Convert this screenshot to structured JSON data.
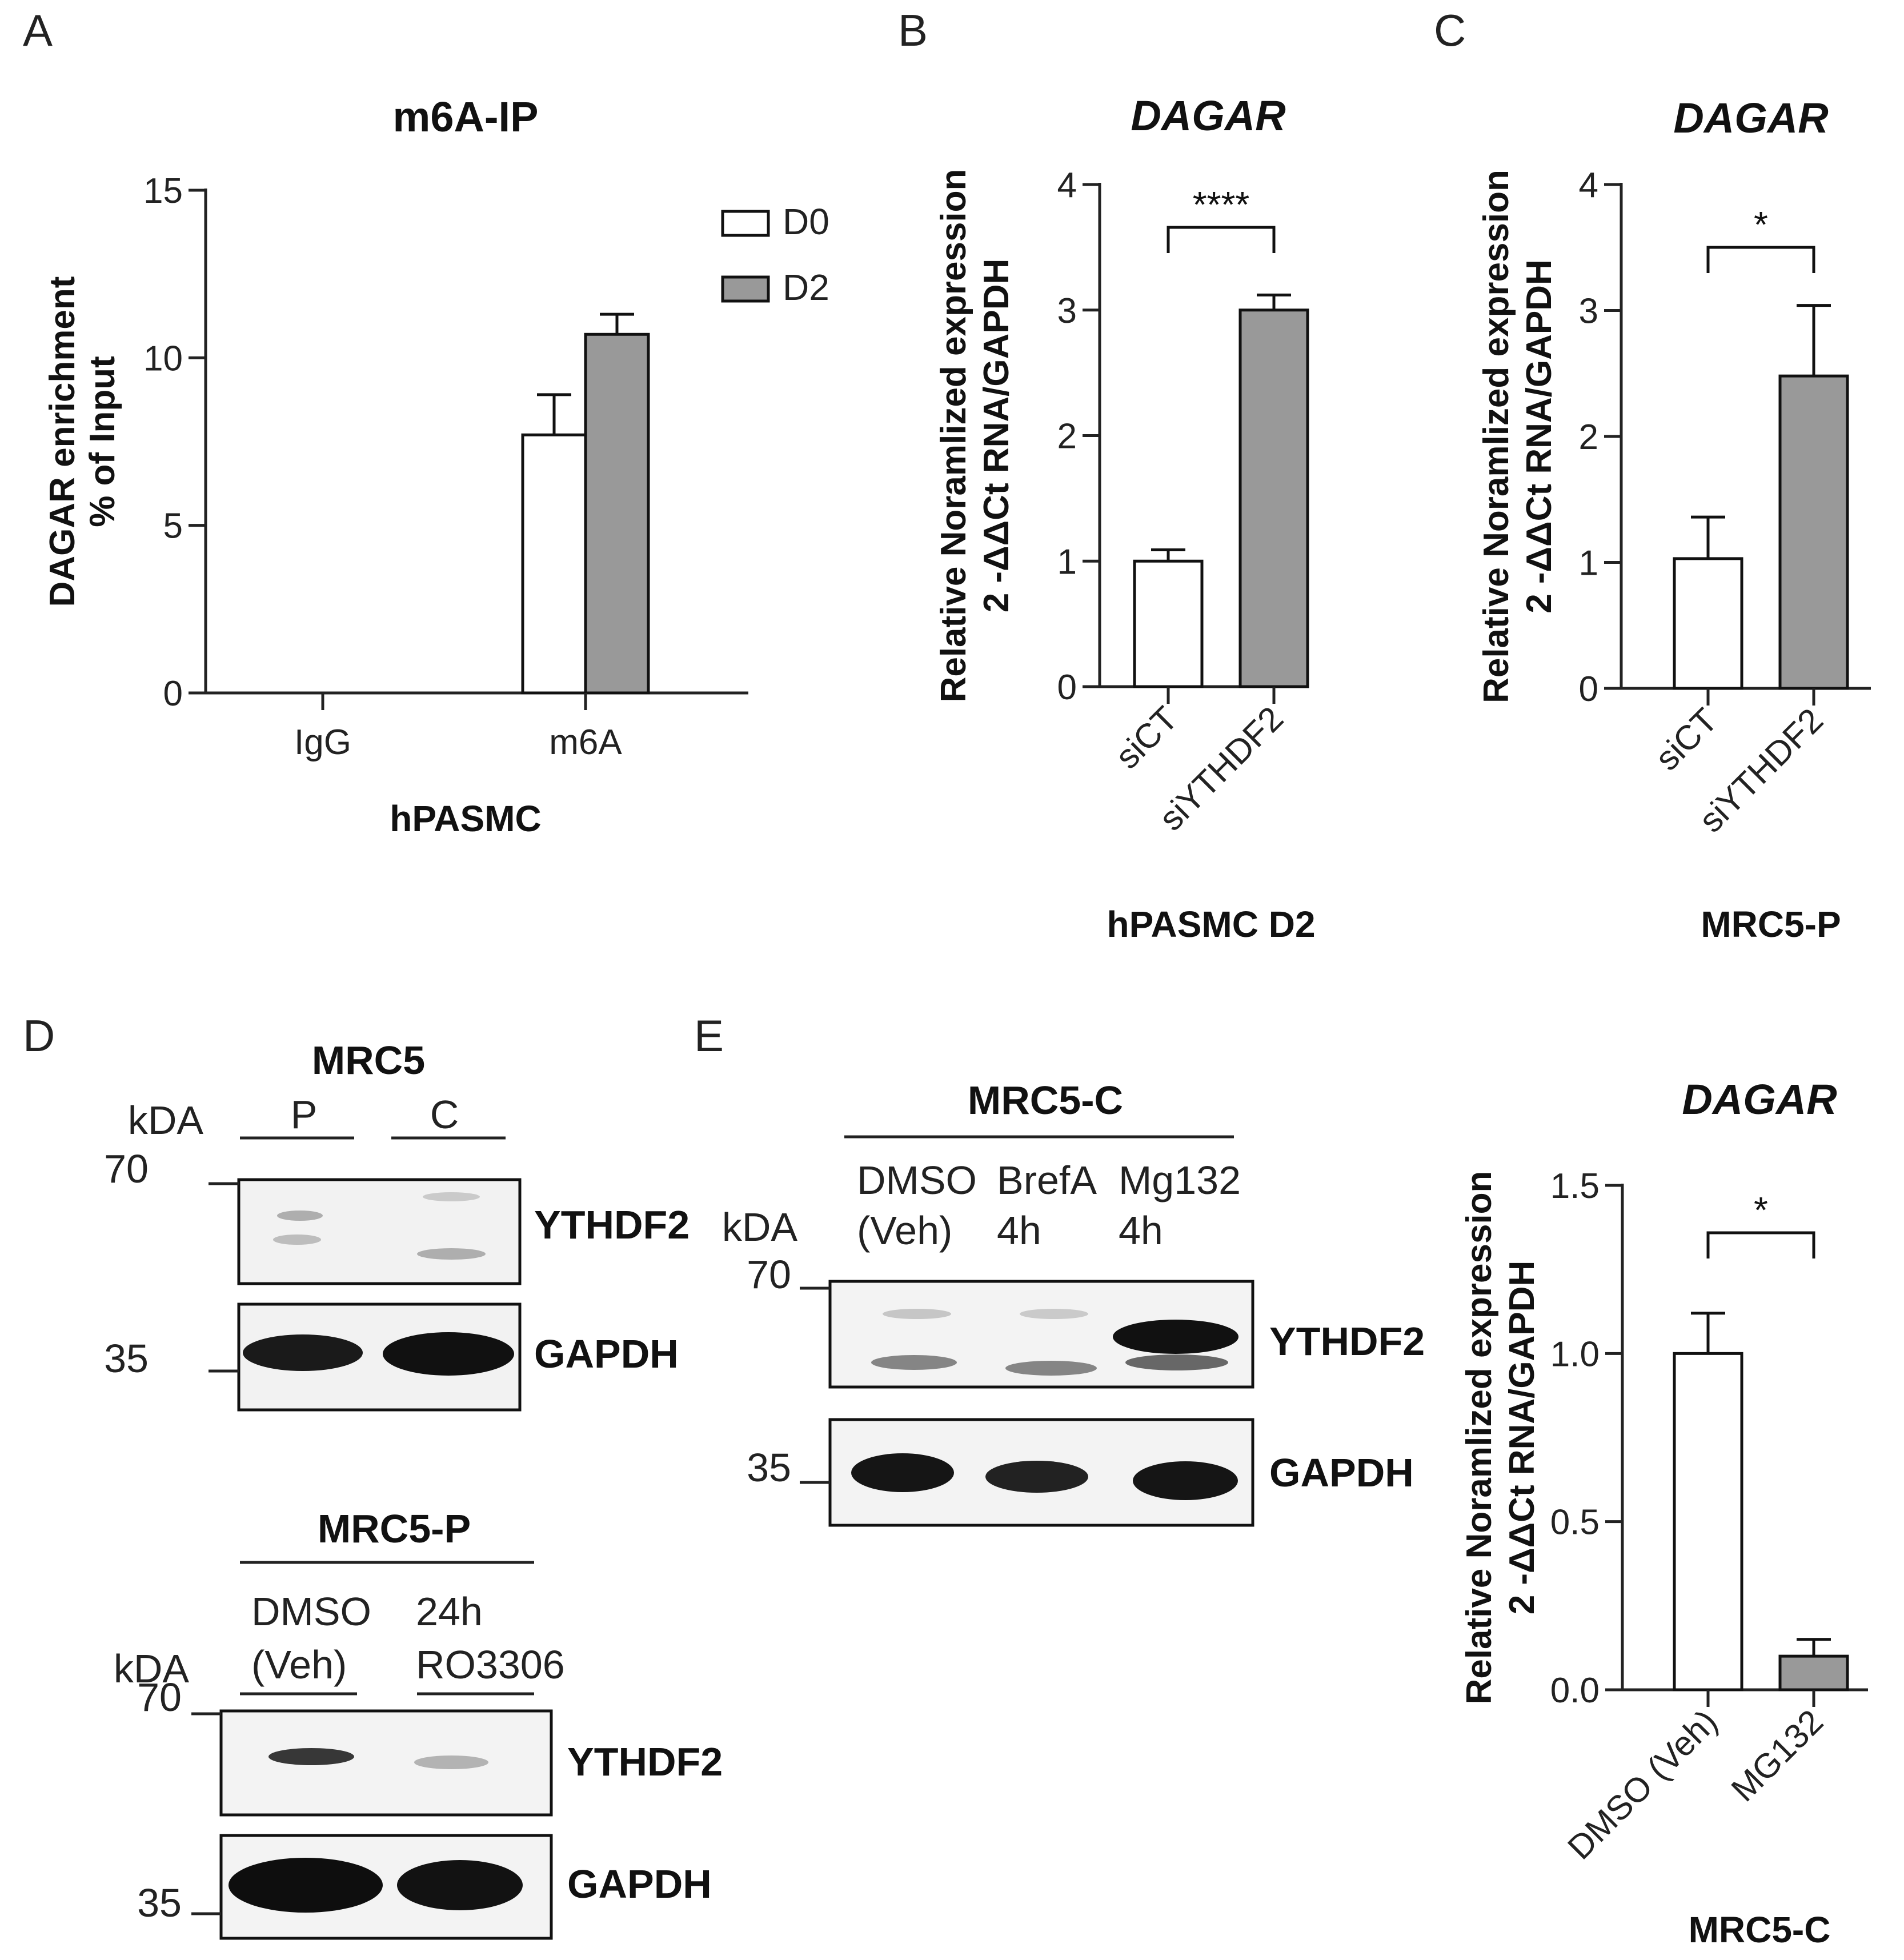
{
  "colors": {
    "d0": "#ffffff",
    "d2": "#999999",
    "axis": "#222222",
    "blot_bg": "#f3f3f3",
    "band": "#1a1a1a"
  },
  "chart_data": [
    {
      "panel": "A",
      "type": "bar",
      "title": "m6A-IP",
      "ylabel_lines": [
        "DAGAR enrichment",
        "% of Input"
      ],
      "xlabel": "hPASMC",
      "categories": [
        "IgG",
        "m6A"
      ],
      "ylim": [
        0,
        15
      ],
      "yticks": [
        "0",
        "5",
        "10",
        "15"
      ],
      "series": [
        {
          "name": "D0",
          "values": [
            0,
            7.7
          ],
          "errors": [
            0,
            1.2
          ]
        },
        {
          "name": "D2",
          "values": [
            0,
            10.7
          ],
          "errors": [
            0,
            0.6
          ]
        }
      ],
      "legend": "top-right"
    },
    {
      "panel": "B",
      "type": "bar",
      "title": "DAGAR",
      "ylabel_lines": [
        "Relative Noramlized expression",
        "2 -ΔΔCt RNA/GAPDH"
      ],
      "xlabel": "hPASMC D2",
      "categories": [
        "siCT",
        "siYTHDF2"
      ],
      "ylim": [
        0,
        4
      ],
      "yticks": [
        "0",
        "1",
        "2",
        "3",
        "4"
      ],
      "values": [
        1.0,
        3.0
      ],
      "errors": [
        0.09,
        0.12
      ],
      "significance": "****"
    },
    {
      "panel": "C",
      "type": "bar",
      "title": "DAGAR",
      "ylabel_lines": [
        "Relative Noramlized expression",
        "2 -ΔΔCt RNA/GAPDH"
      ],
      "xlabel": "MRC5-P",
      "categories": [
        "siCT",
        "siYTHDF2"
      ],
      "ylim": [
        0,
        4
      ],
      "yticks": [
        "0",
        "1",
        "2",
        "3",
        "4"
      ],
      "values": [
        1.03,
        2.48
      ],
      "errors": [
        0.33,
        0.56
      ],
      "significance": "*"
    },
    {
      "panel": "E",
      "type": "bar",
      "title": "DAGAR",
      "ylabel_lines": [
        "Relative Noramlized expression",
        "2 -ΔΔCt RNA/GAPDH"
      ],
      "xlabel": "MRC5-C",
      "categories": [
        "DMSO (Veh)",
        "MG132"
      ],
      "ylim": [
        0,
        1.5
      ],
      "yticks": [
        "0.0",
        "0.5",
        "1.0",
        "1.5"
      ],
      "values": [
        1.0,
        0.1
      ],
      "errors": [
        0.12,
        0.05
      ],
      "significance": "*"
    }
  ],
  "blots": {
    "d_top": {
      "letter": "D",
      "title": "MRC5",
      "kda": "kDA",
      "lanes": [
        "P",
        "C"
      ],
      "markers": [
        "70",
        "35"
      ],
      "rows": [
        "YTHDF2",
        "GAPDH"
      ]
    },
    "d_bottom": {
      "title": "MRC5-P",
      "kda": "kDA",
      "lanes": [
        [
          "DMSO",
          "(Veh)"
        ],
        [
          "24h",
          "RO3306"
        ]
      ],
      "markers": [
        "70",
        "35"
      ],
      "rows": [
        "YTHDF2",
        "GAPDH"
      ]
    },
    "e": {
      "letter": "E",
      "title": "MRC5-C",
      "kda": "kDA",
      "lanes": [
        [
          "DMSO",
          "(Veh)"
        ],
        [
          "BrefA",
          "4h"
        ],
        [
          "Mg132",
          "4h"
        ]
      ],
      "markers": [
        "70",
        "35"
      ],
      "rows": [
        "YTHDF2",
        "GAPDH"
      ]
    }
  }
}
